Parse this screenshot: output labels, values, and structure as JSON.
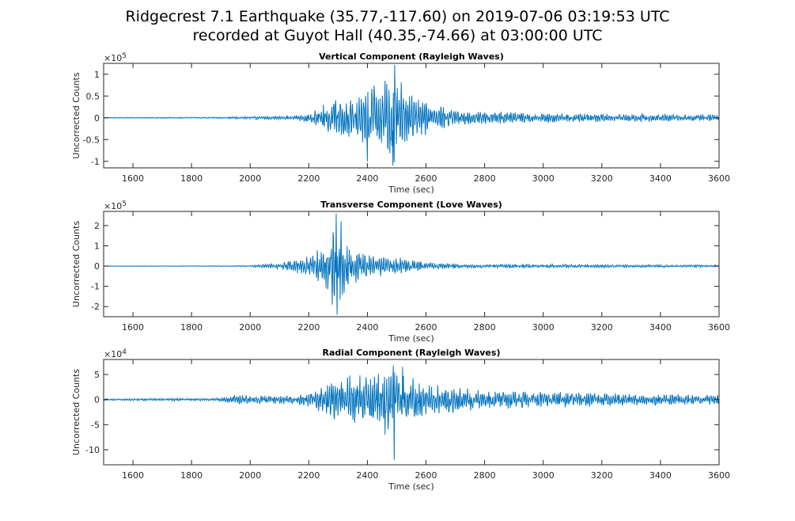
{
  "figure": {
    "title_line1": "Ridgecrest 7.1 Earthquake (35.77,-117.60) on 2019-07-06 03:19:53 UTC",
    "title_line2": "recorded at Guyot Hall (40.35,-74.66) at 03:00:00 UTC"
  },
  "colors": {
    "trace": "#0072BD",
    "axes": "#262626",
    "background": "#ffffff"
  },
  "chart_data": [
    {
      "type": "line",
      "title": "Vertical Component (Rayleigh Waves)",
      "xlabel": "Time (sec)",
      "ylabel": "Uncorrected Counts",
      "exponent_label": "×10",
      "exponent_power": "5",
      "xlim": [
        1500,
        3600
      ],
      "ylim": [
        -1.15,
        1.25
      ],
      "xticks": [
        1600,
        1800,
        2000,
        2200,
        2400,
        2600,
        2800,
        3000,
        3200,
        3400,
        3600
      ],
      "yticks": [
        -1,
        -0.5,
        0,
        0.5,
        1
      ],
      "ytick_labels": [
        "-1",
        "-0.5",
        "0",
        "0.5",
        "1"
      ],
      "grid": false,
      "envelope": [
        [
          1500,
          0.01
        ],
        [
          1900,
          0.015
        ],
        [
          1950,
          0.03
        ],
        [
          2000,
          0.04
        ],
        [
          2150,
          0.05
        ],
        [
          2200,
          0.12
        ],
        [
          2250,
          0.32
        ],
        [
          2300,
          0.5
        ],
        [
          2380,
          0.7
        ],
        [
          2450,
          0.9
        ],
        [
          2490,
          1.1
        ],
        [
          2540,
          0.6
        ],
        [
          2600,
          0.4
        ],
        [
          2700,
          0.2
        ],
        [
          2800,
          0.15
        ],
        [
          3000,
          0.12
        ],
        [
          3200,
          0.1
        ],
        [
          3600,
          0.08
        ]
      ],
      "peaks": [
        [
          2493,
          1.22
        ],
        [
          2487,
          -1.1
        ],
        [
          2400,
          -1.0
        ],
        [
          2460,
          0.85
        ]
      ]
    },
    {
      "type": "line",
      "title": "Transverse Component (Love Waves)",
      "xlabel": "Time (sec)",
      "ylabel": "Uncorrected Counts",
      "exponent_label": "×10",
      "exponent_power": "5",
      "xlim": [
        1500,
        3600
      ],
      "ylim": [
        -2.5,
        2.7
      ],
      "xticks": [
        1600,
        1800,
        2000,
        2200,
        2400,
        2600,
        2800,
        3000,
        3200,
        3400,
        3600
      ],
      "yticks": [
        -2,
        -1,
        0,
        1,
        2
      ],
      "ytick_labels": [
        "-2",
        "-1",
        "0",
        "1",
        "2"
      ],
      "grid": false,
      "envelope": [
        [
          1500,
          0.01
        ],
        [
          1930,
          0.02
        ],
        [
          2000,
          0.04
        ],
        [
          2100,
          0.15
        ],
        [
          2200,
          0.5
        ],
        [
          2250,
          1.0
        ],
        [
          2290,
          2.3
        ],
        [
          2320,
          1.4
        ],
        [
          2380,
          0.7
        ],
        [
          2450,
          0.5
        ],
        [
          2500,
          0.45
        ],
        [
          2550,
          0.3
        ],
        [
          2650,
          0.15
        ],
        [
          2800,
          0.1
        ],
        [
          3000,
          0.09
        ],
        [
          3600,
          0.06
        ]
      ],
      "peaks": [
        [
          2293,
          2.6
        ],
        [
          2297,
          -2.4
        ],
        [
          2310,
          2.2
        ],
        [
          2280,
          -1.9
        ]
      ]
    },
    {
      "type": "line",
      "title": "Radial Component (Rayleigh Waves)",
      "xlabel": "Time (sec)",
      "ylabel": "Uncorrected Counts",
      "exponent_label": "×10",
      "exponent_power": "4",
      "xlim": [
        1500,
        3600
      ],
      "ylim": [
        -13,
        8
      ],
      "xticks": [
        1600,
        1800,
        2000,
        2200,
        2400,
        2600,
        2800,
        3000,
        3200,
        3400,
        3600
      ],
      "yticks": [
        -10,
        -5,
        0,
        5
      ],
      "ytick_labels": [
        "-10",
        "-5",
        "0",
        "5"
      ],
      "grid": false,
      "envelope": [
        [
          1500,
          0.2
        ],
        [
          1900,
          0.3
        ],
        [
          1950,
          1.2
        ],
        [
          2000,
          0.8
        ],
        [
          2150,
          0.9
        ],
        [
          2200,
          1.5
        ],
        [
          2250,
          3.0
        ],
        [
          2300,
          4.5
        ],
        [
          2400,
          5.5
        ],
        [
          2480,
          6.5
        ],
        [
          2550,
          4.5
        ],
        [
          2650,
          3.0
        ],
        [
          2800,
          2.0
        ],
        [
          3000,
          1.6
        ],
        [
          3200,
          1.4
        ],
        [
          3600,
          1.0
        ]
      ],
      "peaks": [
        [
          2492,
          -12
        ],
        [
          2488,
          6.8
        ],
        [
          2460,
          -7
        ],
        [
          2520,
          6.5
        ]
      ]
    }
  ]
}
